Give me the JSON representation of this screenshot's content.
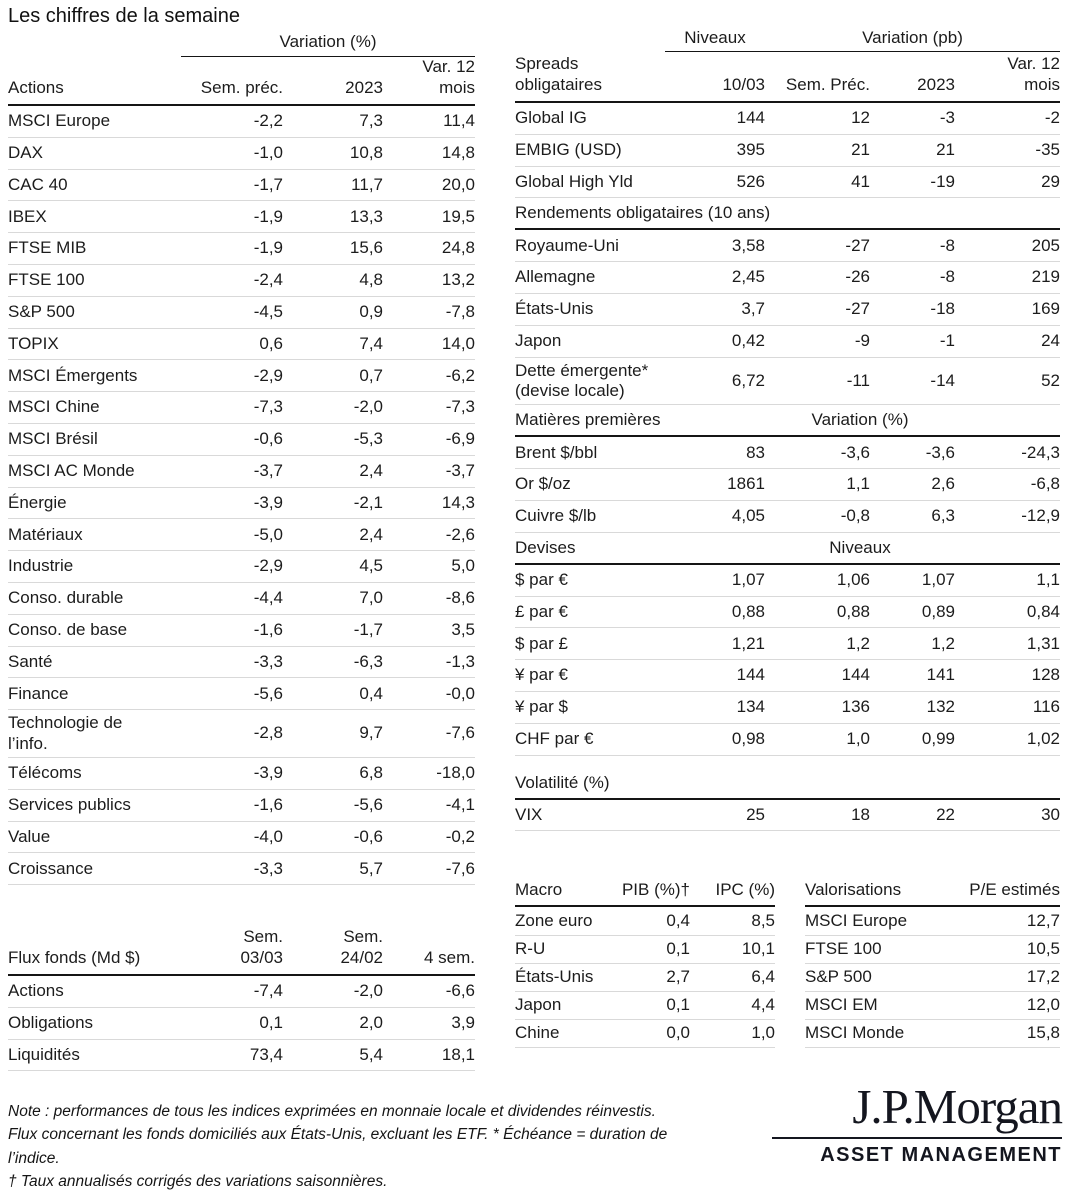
{
  "page_title": "Les chiffres de la semaine",
  "actions_table": {
    "group_header": "Variation (%)",
    "col0": "Actions",
    "cols": [
      "Sem. préc.",
      "2023",
      "Var. 12\nmois"
    ],
    "rows": [
      {
        "label": "MSCI Europe",
        "values": [
          "-2,2",
          "7,3",
          "11,4"
        ]
      },
      {
        "label": "DAX",
        "values": [
          "-1,0",
          "10,8",
          "14,8"
        ]
      },
      {
        "label": "CAC 40",
        "values": [
          "-1,7",
          "11,7",
          "20,0"
        ]
      },
      {
        "label": "IBEX",
        "values": [
          "-1,9",
          "13,3",
          "19,5"
        ]
      },
      {
        "label": "FTSE MIB",
        "values": [
          "-1,9",
          "15,6",
          "24,8"
        ]
      },
      {
        "label": "FTSE 100",
        "values": [
          "-2,4",
          "4,8",
          "13,2"
        ]
      },
      {
        "label": "S&P 500",
        "values": [
          "-4,5",
          "0,9",
          "-7,8"
        ]
      },
      {
        "label": "TOPIX",
        "values": [
          "0,6",
          "7,4",
          "14,0"
        ]
      },
      {
        "label": "MSCI Émergents",
        "values": [
          "-2,9",
          "0,7",
          "-6,2"
        ]
      },
      {
        "label": "MSCI Chine",
        "values": [
          "-7,3",
          "-2,0",
          "-7,3"
        ]
      },
      {
        "label": "MSCI Brésil",
        "values": [
          "-0,6",
          "-5,3",
          "-6,9"
        ]
      },
      {
        "label": "MSCI AC Monde",
        "values": [
          "-3,7",
          "2,4",
          "-3,7"
        ]
      },
      {
        "label": "Énergie",
        "values": [
          "-3,9",
          "-2,1",
          "14,3"
        ]
      },
      {
        "label": "Matériaux",
        "values": [
          "-5,0",
          "2,4",
          "-2,6"
        ]
      },
      {
        "label": "Industrie",
        "values": [
          "-2,9",
          "4,5",
          "5,0"
        ]
      },
      {
        "label": "Conso. durable",
        "values": [
          "-4,4",
          "7,0",
          "-8,6"
        ]
      },
      {
        "label": "Conso. de base",
        "values": [
          "-1,6",
          "-1,7",
          "3,5"
        ]
      },
      {
        "label": "Santé",
        "values": [
          "-3,3",
          "-6,3",
          "-1,3"
        ]
      },
      {
        "label": "Finance",
        "values": [
          "-5,6",
          "0,4",
          "-0,0"
        ]
      },
      {
        "label": "Technologie de\nl’info.",
        "values": [
          "-2,8",
          "9,7",
          "-7,6"
        ]
      },
      {
        "label": "Télécoms",
        "values": [
          "-3,9",
          "6,8",
          "-18,0"
        ]
      },
      {
        "label": "Services publics",
        "values": [
          "-1,6",
          "-5,6",
          "-4,1"
        ]
      },
      {
        "label": "Value",
        "values": [
          "-4,0",
          "-0,6",
          "-0,2"
        ]
      },
      {
        "label": "Croissance",
        "values": [
          "-3,3",
          "5,7",
          "-7,6"
        ]
      }
    ]
  },
  "flux_table": {
    "col0": "Flux fonds (Md $)",
    "cols": [
      "Sem.\n03/03",
      "Sem.\n24/02",
      "4 sem."
    ],
    "rows": [
      {
        "label": "Actions",
        "values": [
          "-7,4",
          "-2,0",
          "-6,6"
        ]
      },
      {
        "label": "Obligations",
        "values": [
          "0,1",
          "2,0",
          "3,9"
        ]
      },
      {
        "label": "Liquidités",
        "values": [
          "73,4",
          "5,4",
          "18,1"
        ]
      }
    ]
  },
  "spreads_table": {
    "group_header_levels": "Niveaux",
    "group_header_variation": "Variation (pb)",
    "col0": "Spreads obligataires",
    "cols": [
      "10/03",
      "Sem. Préc.",
      "2023",
      "Var. 12\nmois"
    ],
    "rows": [
      {
        "label": "Global IG",
        "values": [
          "144",
          "12",
          "-3",
          "-2"
        ]
      },
      {
        "label": "EMBIG (USD)",
        "values": [
          "395",
          "21",
          "21",
          "-35"
        ]
      },
      {
        "label": "Global High Yld",
        "values": [
          "526",
          "41",
          "-19",
          "29"
        ]
      }
    ]
  },
  "rendements_table": {
    "title": "Rendements obligataires (10 ans)",
    "rows": [
      {
        "label": "Royaume-Uni",
        "values": [
          "3,58",
          "-27",
          "-8",
          "205"
        ]
      },
      {
        "label": "Allemagne",
        "values": [
          "2,45",
          "-26",
          "-8",
          "219"
        ]
      },
      {
        "label": "États-Unis",
        "values": [
          "3,7",
          "-27",
          "-18",
          "169"
        ]
      },
      {
        "label": "Japon",
        "values": [
          "0,42",
          "-9",
          "-1",
          "24"
        ]
      },
      {
        "label": "Dette émergente*\n(devise locale)",
        "values": [
          "6,72",
          "-11",
          "-14",
          "52"
        ]
      }
    ]
  },
  "matieres_table": {
    "title": "Matières premières",
    "group_header": "Variation (%)",
    "rows": [
      {
        "label": "Brent $/bbl",
        "values": [
          "83",
          "-3,6",
          "-3,6",
          "-24,3"
        ]
      },
      {
        "label": "Or $/oz",
        "values": [
          "1861",
          "1,1",
          "2,6",
          "-6,8"
        ]
      },
      {
        "label": "Cuivre $/lb",
        "values": [
          "4,05",
          "-0,8",
          "6,3",
          "-12,9"
        ]
      }
    ]
  },
  "devises_table": {
    "title": "Devises",
    "group_header": "Niveaux",
    "rows": [
      {
        "label": "$ par €",
        "values": [
          "1,07",
          "1,06",
          "1,07",
          "1,1"
        ]
      },
      {
        "label": "£ par €",
        "values": [
          "0,88",
          "0,88",
          "0,89",
          "0,84"
        ]
      },
      {
        "label": "$ par £",
        "values": [
          "1,21",
          "1,2",
          "1,2",
          "1,31"
        ]
      },
      {
        "label": "¥ par €",
        "values": [
          "144",
          "144",
          "141",
          "128"
        ]
      },
      {
        "label": "¥ par $",
        "values": [
          "134",
          "136",
          "132",
          "116"
        ]
      },
      {
        "label": "CHF par €",
        "values": [
          "0,98",
          "1,0",
          "0,99",
          "1,02"
        ]
      }
    ]
  },
  "volatilite_table": {
    "title": "Volatilité (%)",
    "rows": [
      {
        "label": "VIX",
        "values": [
          "25",
          "18",
          "22",
          "30"
        ]
      }
    ]
  },
  "macro_table": {
    "col0": "Macro",
    "cols": [
      "PIB (%)†",
      "IPC (%)"
    ],
    "rows": [
      {
        "label": "Zone euro",
        "values": [
          "0,4",
          "8,5"
        ]
      },
      {
        "label": "R-U",
        "values": [
          "0,1",
          "10,1"
        ]
      },
      {
        "label": "États-Unis",
        "values": [
          "2,7",
          "6,4"
        ]
      },
      {
        "label": "Japon",
        "values": [
          "0,1",
          "4,4"
        ]
      },
      {
        "label": "Chine",
        "values": [
          "0,0",
          "1,0"
        ]
      }
    ]
  },
  "valorisations_table": {
    "col0": "Valorisations",
    "col1": "P/E estimés",
    "rows": [
      {
        "label": "MSCI Europe",
        "values": [
          "12,7"
        ]
      },
      {
        "label": "FTSE 100",
        "values": [
          "10,5"
        ]
      },
      {
        "label": "S&P 500",
        "values": [
          "17,2"
        ]
      },
      {
        "label": "MSCI EM",
        "values": [
          "12,0"
        ]
      },
      {
        "label": "MSCI Monde",
        "values": [
          "15,8"
        ]
      }
    ]
  },
  "notes": {
    "line1": "Note : performances de tous les indices exprimées en monnaie locale et dividendes réinvestis.",
    "line2": "Flux concernant les fonds domiciliés aux États-Unis, excluant les ETF. * Échéance = duration de l’indice.",
    "line3": "† Taux annualisés corrigés des variations saisonnières."
  },
  "logo": {
    "brand": "J.P.Morgan",
    "division": "ASSET MANAGEMENT"
  }
}
